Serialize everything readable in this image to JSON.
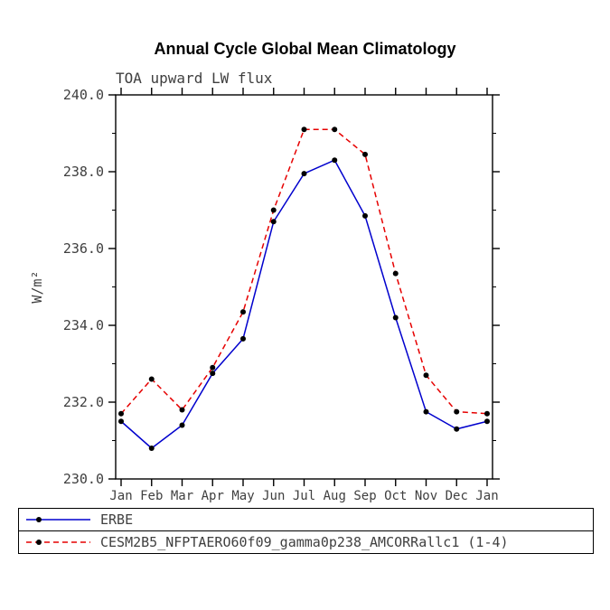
{
  "header": {
    "title": "Annual Cycle Global Mean Climatology",
    "subtitle": "TOA upward LW flux"
  },
  "chart_data": {
    "type": "line",
    "title": "Annual Cycle Global Mean Climatology",
    "subtitle": "TOA upward LW flux",
    "xlabel": "",
    "ylabel": "W/m²",
    "ylim": [
      230.0,
      240.0
    ],
    "yticks": [
      230.0,
      232.0,
      234.0,
      236.0,
      238.0,
      240.0
    ],
    "ytick_minor_step": 1.0,
    "grid": false,
    "legend_position": "bottom",
    "categories": [
      "Jan",
      "Feb",
      "Mar",
      "Apr",
      "May",
      "Jun",
      "Jul",
      "Aug",
      "Sep",
      "Oct",
      "Nov",
      "Dec",
      "Jan"
    ],
    "series": [
      {
        "name": "ERBE",
        "color": "#0000cd",
        "dash": "solid",
        "marker": "circle",
        "marker_color": "#000000",
        "values": [
          231.5,
          230.8,
          231.4,
          232.75,
          233.65,
          236.7,
          237.95,
          238.3,
          236.85,
          234.2,
          231.75,
          231.3,
          231.5
        ]
      },
      {
        "name": "CESM2B5_NFPTAERO60f09_gamma0p238_AMCORRallc1 (1-4)",
        "color": "#e60000",
        "dash": "dashed",
        "marker": "circle",
        "marker_color": "#000000",
        "values": [
          231.7,
          232.6,
          231.8,
          232.9,
          234.35,
          237.0,
          239.1,
          239.1,
          238.45,
          235.35,
          232.7,
          231.75,
          231.7
        ]
      }
    ]
  }
}
